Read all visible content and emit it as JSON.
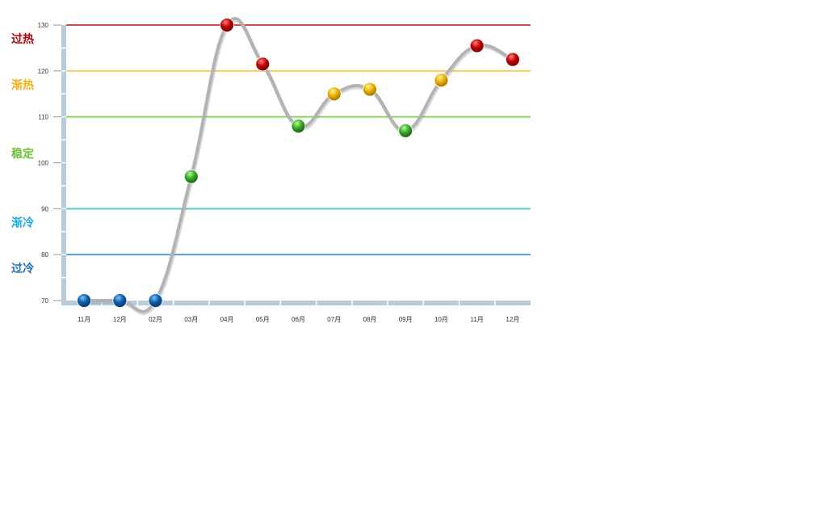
{
  "chart_data": {
    "type": "line",
    "title": "",
    "xlabel": "",
    "ylabel": "",
    "categories": [
      "11月",
      "12月",
      "02月",
      "03月",
      "04月",
      "05月",
      "06月",
      "07月",
      "08月",
      "09月",
      "10月",
      "11月",
      "12月"
    ],
    "values": [
      70,
      70,
      70,
      97,
      130,
      121.5,
      108,
      115,
      116,
      107,
      118,
      125.5,
      122.5
    ],
    "ylim": [
      70,
      130
    ],
    "yticks": [
      70,
      80,
      90,
      100,
      110,
      120,
      130
    ],
    "grid": false,
    "line_color": "#b3b3b3",
    "thresholds": [
      {
        "value": 130,
        "color": "#c0302f"
      },
      {
        "value": 120,
        "color": "#f5c242"
      },
      {
        "value": 110,
        "color": "#6fd13a"
      },
      {
        "value": 90,
        "color": "#3cc4b4"
      },
      {
        "value": 80,
        "color": "#3d8fd0"
      }
    ],
    "zones": [
      {
        "label": "过热",
        "color": "#b00000",
        "at": 127
      },
      {
        "label": "渐热",
        "color": "#f2b31a",
        "at": 117
      },
      {
        "label": "稳定",
        "color": "#66c233",
        "at": 102
      },
      {
        "label": "渐冷",
        "color": "#1fa8e0",
        "at": 87
      },
      {
        "label": "过冷",
        "color": "#1f6fb5",
        "at": 77
      }
    ],
    "marker_colors": {
      "hot": "#b80000",
      "warm": "#e8b000",
      "stable": "#3aa82a",
      "cold": "#0b5fa8"
    }
  }
}
